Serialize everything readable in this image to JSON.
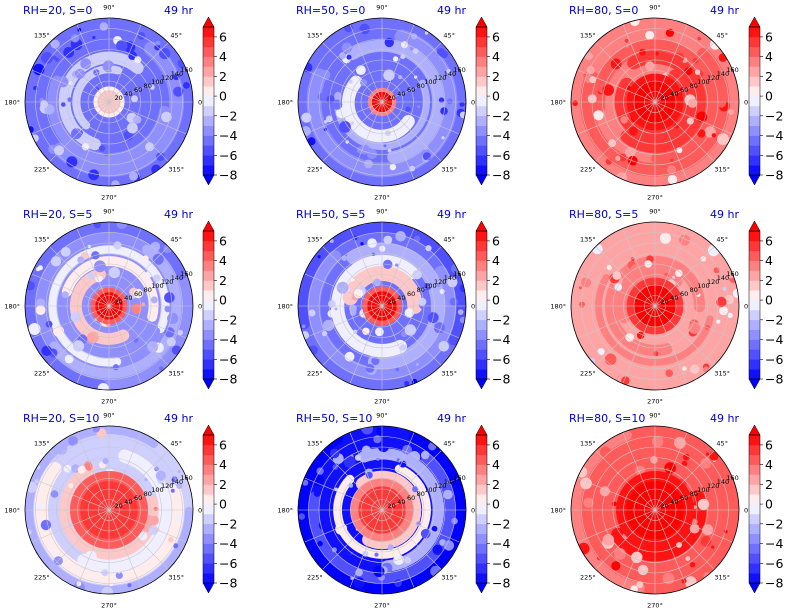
{
  "chart_data": {
    "type": "polar-contour-grid",
    "layout": {
      "rows": 3,
      "cols": 3
    },
    "time_label": "49 hr",
    "colorbar": {
      "ticks": [
        6,
        4,
        2,
        0,
        -2,
        -4,
        -6,
        -8
      ],
      "tick_labels": [
        "6",
        "4",
        "2",
        "0",
        "−2",
        "−4",
        "−6",
        "−8"
      ],
      "range": [
        -8,
        7
      ],
      "levels": [
        -8,
        -7,
        -6,
        -5,
        -4,
        -3,
        -2,
        -1,
        0,
        1,
        2,
        3,
        4,
        5,
        6,
        7
      ],
      "extend": "both",
      "colormap": "bwr",
      "colors": {
        "min": "#0000ff",
        "mid": "#ffffff",
        "max": "#ff0000"
      }
    },
    "angle_labels": [
      "90°",
      "45°",
      "0°",
      "315°",
      "270°",
      "225°",
      "180°",
      "135°"
    ],
    "radial_labels": [
      "20",
      "40",
      "60",
      "80",
      "100",
      "120",
      "140",
      "160"
    ],
    "radial_range": [
      0,
      160
    ],
    "panels": [
      {
        "title": "RH=20, S=0",
        "rh": 20,
        "s": 0,
        "core_value": 1.5,
        "core_radius": 22,
        "outer_value": -5.0,
        "band_value": -1.5
      },
      {
        "title": "RH=50, S=0",
        "rh": 50,
        "s": 0,
        "core_value": 7.0,
        "core_radius": 20,
        "outer_value": -4.5,
        "band_value": -1.0
      },
      {
        "title": "RH=80, S=0",
        "rh": 80,
        "s": 0,
        "core_value": 7.0,
        "core_radius": 40,
        "outer_value": 3.5,
        "band_value": 5.0
      },
      {
        "title": "RH=20, S=5",
        "rh": 20,
        "s": 5,
        "core_value": 7.0,
        "core_radius": 26,
        "outer_value": -3.5,
        "band_value": 1.5
      },
      {
        "title": "RH=50, S=5",
        "rh": 50,
        "s": 5,
        "core_value": 7.0,
        "core_radius": 28,
        "outer_value": -5.0,
        "band_value": 1.0
      },
      {
        "title": "RH=80, S=5",
        "rh": 80,
        "s": 5,
        "core_value": 7.0,
        "core_radius": 40,
        "outer_value": 2.0,
        "band_value": 4.5
      },
      {
        "title": "RH=20, S=10",
        "rh": 20,
        "s": 10,
        "core_value": 5.5,
        "core_radius": 55,
        "outer_value": -2.0,
        "band_value": 3.0
      },
      {
        "title": "RH=50, S=10",
        "rh": 50,
        "s": 10,
        "core_value": 5.0,
        "core_radius": 45,
        "outer_value": -7.5,
        "band_value": 2.0
      },
      {
        "title": "RH=80, S=10",
        "rh": 80,
        "s": 10,
        "core_value": 7.0,
        "core_radius": 55,
        "outer_value": 4.0,
        "band_value": 6.0
      }
    ]
  }
}
